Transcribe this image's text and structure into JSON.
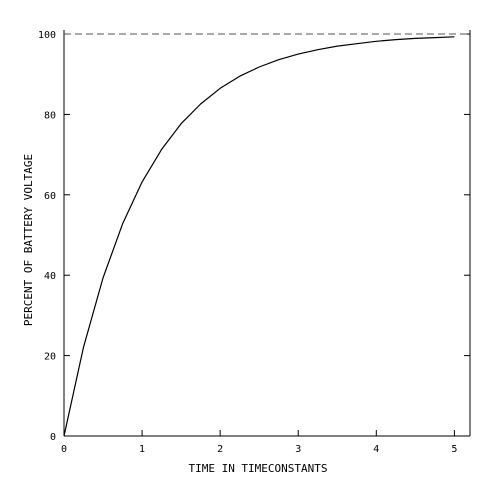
{
  "chart_data": {
    "type": "line",
    "title": "",
    "xlabel": "TIME IN TIMECONSTANTS",
    "ylabel": "PERCENT OF BATTERY VOLTAGE",
    "xlim": [
      0,
      5.2
    ],
    "ylim": [
      0,
      101
    ],
    "grid": false,
    "x_ticks": [
      0,
      1,
      2,
      3,
      4,
      5
    ],
    "y_ticks": [
      0,
      20,
      40,
      60,
      80,
      100
    ],
    "asymptote": {
      "y": 100,
      "style": "dashed"
    },
    "series": [
      {
        "x": [
          0,
          0.25,
          0.5,
          0.75,
          1,
          1.25,
          1.5,
          1.75,
          2,
          2.25,
          2.5,
          2.75,
          3,
          3.25,
          3.5,
          3.75,
          4,
          4.25,
          4.5,
          4.75,
          5
        ],
        "values": [
          0,
          22.1,
          39.3,
          52.8,
          63.2,
          71.3,
          77.7,
          82.6,
          86.5,
          89.5,
          91.8,
          93.6,
          95.0,
          96.1,
          97.0,
          97.6,
          98.2,
          98.6,
          98.9,
          99.1,
          99.3
        ]
      }
    ],
    "colors": {
      "line": "#000000",
      "asymptote": "#555555",
      "frame": "#000000"
    }
  }
}
